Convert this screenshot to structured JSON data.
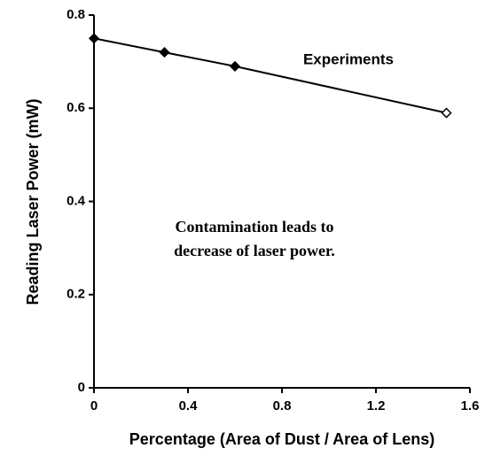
{
  "chart_data": {
    "type": "line",
    "x_label": "Percentage (Area of Dust / Area of Lens)",
    "y_label": "Reading Laser Power (mW)",
    "x": [
      0,
      0.3,
      0.6,
      1.5
    ],
    "series": [
      {
        "name": "Experiments",
        "color": "#000000",
        "values": [
          0.75,
          0.72,
          0.69,
          0.59
        ],
        "marker_filled": [
          true,
          true,
          true,
          false
        ]
      }
    ],
    "xlim": [
      0,
      1.6
    ],
    "xticks": [
      0,
      0.4,
      0.8,
      1.2,
      1.6
    ],
    "ylim": [
      0,
      0.8
    ],
    "yticks": [
      0,
      0.2,
      0.4,
      0.6,
      0.8
    ],
    "annotations": [
      "Contamination leads to",
      "decrease of laser power."
    ]
  }
}
